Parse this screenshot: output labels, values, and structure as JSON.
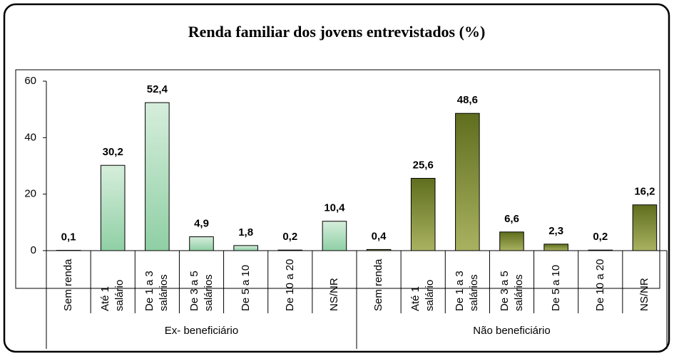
{
  "chart_data": {
    "type": "bar",
    "title": "Renda familiar dos jovens entrevistados (%)",
    "categories": [
      "Sem renda",
      "Até 1 salário",
      "De 1 a 3 salários",
      "De 3 a 5 salários",
      "De 5 a 10",
      "De 10 a 20",
      "NS/NR"
    ],
    "series": [
      {
        "name": "Ex- beneficiário",
        "color": "#9fd4b0",
        "values": [
          0.1,
          30.2,
          52.4,
          4.9,
          1.8,
          0.2,
          10.4
        ],
        "value_labels": [
          "0,1",
          "30,2",
          "52,4",
          "4,9",
          "1,8",
          "0,2",
          "10,4"
        ]
      },
      {
        "name": "Não beneficiário",
        "color": "#8a9a3f",
        "values": [
          0.4,
          25.6,
          48.6,
          6.6,
          2.3,
          0.2,
          16.2
        ],
        "value_labels": [
          "0,4",
          "25,6",
          "48,6",
          "6,6",
          "2,3",
          "0,2",
          "16,2"
        ]
      }
    ],
    "ylim": [
      0,
      60
    ],
    "yticks": [
      0,
      20,
      40,
      60
    ],
    "grid": false
  }
}
